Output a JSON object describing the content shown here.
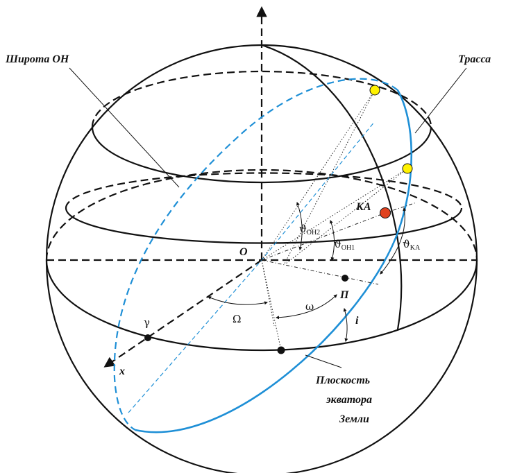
{
  "labels": {
    "latitude": "Широта ОН",
    "track": "Трасса",
    "equator_plane_line1": "Плоскость",
    "equator_plane_line2": "экватора",
    "equator_plane_line3": "Земли",
    "spacecraft": "КА",
    "origin": "О",
    "perigee": "П",
    "x_axis": "x",
    "vernal_equinox": "γ",
    "raan": "Ω",
    "arg_perigee": "ω",
    "inclination": "i",
    "theta_symbol": "ϑ",
    "theta_oh2_sub": "OH2",
    "theta_oh1_sub": "OH1",
    "theta_ka_sub": "KA"
  },
  "colors": {
    "orbit": "#1e8fd6",
    "spacecraft": "#e0421f",
    "ground_station": "#fff200",
    "line": "#111111"
  }
}
